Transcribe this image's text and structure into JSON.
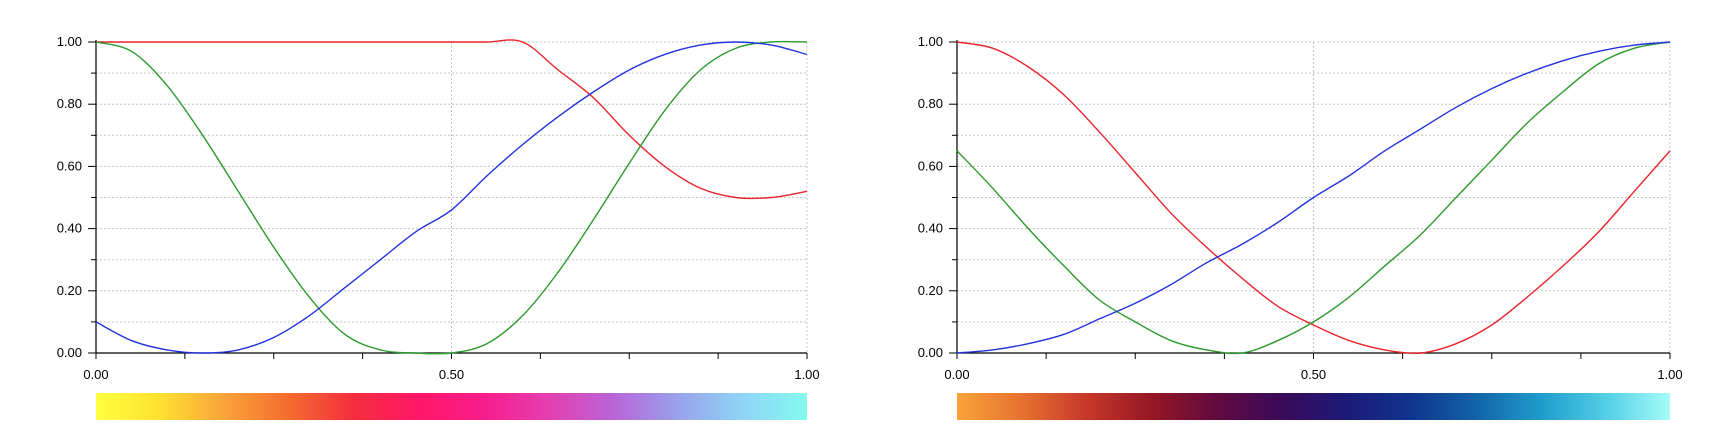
{
  "chart_data": [
    {
      "type": "line",
      "title": "",
      "xlabel": "",
      "ylabel": "",
      "xlim": [
        0,
        1
      ],
      "ylim": [
        0,
        1
      ],
      "x_ticks": [
        0,
        0.5,
        1
      ],
      "x_tick_labels": [
        "0.00",
        "0.50",
        "1.00"
      ],
      "y_ticks": [
        0,
        0.2,
        0.4,
        0.6,
        0.8,
        1
      ],
      "y_tick_labels": [
        "0.00",
        "0.20",
        "0.40",
        "0.60",
        "0.80",
        "1.00"
      ],
      "grid": true,
      "x": [
        0,
        0.05,
        0.1,
        0.15,
        0.2,
        0.25,
        0.3,
        0.35,
        0.4,
        0.45,
        0.5,
        0.55,
        0.6,
        0.65,
        0.7,
        0.75,
        0.8,
        0.85,
        0.9,
        0.95,
        1.0
      ],
      "series": [
        {
          "color": "#e8242b",
          "values": [
            1,
            1,
            1,
            1,
            1,
            1,
            1,
            1,
            1,
            1,
            1,
            1,
            1,
            0.91,
            0.82,
            0.7,
            0.6,
            0.53,
            0.5,
            0.5,
            0.52
          ]
        },
        {
          "color": "#2c9a2c",
          "values": [
            1,
            0.97,
            0.86,
            0.7,
            0.52,
            0.34,
            0.18,
            0.06,
            0.01,
            0.0,
            0.0,
            0.03,
            0.12,
            0.26,
            0.43,
            0.61,
            0.78,
            0.91,
            0.98,
            1.0,
            1.0
          ]
        },
        {
          "color": "#2233dd",
          "values": [
            0.1,
            0.04,
            0.01,
            0.0,
            0.01,
            0.05,
            0.12,
            0.21,
            0.3,
            0.39,
            0.46,
            0.57,
            0.67,
            0.76,
            0.84,
            0.91,
            0.96,
            0.99,
            1.0,
            0.99,
            0.96
          ]
        }
      ],
      "colorbar": [
        "#ffff40",
        "#ffe030",
        "#f9a23a",
        "#f46b2e",
        "#f42d3e",
        "#ff1668",
        "#f81d8c",
        "#e43fb0",
        "#b964d8",
        "#9aa2ec",
        "#8fd4f6",
        "#84faee"
      ]
    },
    {
      "type": "line",
      "title": "",
      "xlabel": "",
      "ylabel": "",
      "xlim": [
        0,
        1
      ],
      "ylim": [
        0,
        1
      ],
      "x_ticks": [
        0,
        0.5,
        1
      ],
      "x_tick_labels": [
        "0.00",
        "0.50",
        "1.00"
      ],
      "y_ticks": [
        0,
        0.2,
        0.4,
        0.6,
        0.8,
        1
      ],
      "y_tick_labels": [
        "0.00",
        "0.20",
        "0.40",
        "0.60",
        "0.80",
        "1.00"
      ],
      "grid": true,
      "x": [
        0,
        0.05,
        0.1,
        0.15,
        0.2,
        0.25,
        0.3,
        0.35,
        0.4,
        0.45,
        0.5,
        0.55,
        0.6,
        0.65,
        0.7,
        0.75,
        0.8,
        0.85,
        0.9,
        0.95,
        1.0
      ],
      "series": [
        {
          "color": "#e8242b",
          "values": [
            1,
            0.98,
            0.92,
            0.83,
            0.71,
            0.58,
            0.45,
            0.34,
            0.24,
            0.15,
            0.09,
            0.04,
            0.01,
            0.0,
            0.03,
            0.09,
            0.18,
            0.28,
            0.39,
            0.52,
            0.65
          ]
        },
        {
          "color": "#2c9a2c",
          "values": [
            0.65,
            0.53,
            0.4,
            0.28,
            0.17,
            0.1,
            0.04,
            0.01,
            0.0,
            0.04,
            0.1,
            0.18,
            0.28,
            0.38,
            0.5,
            0.62,
            0.74,
            0.84,
            0.93,
            0.98,
            1.0
          ]
        },
        {
          "color": "#2233dd",
          "values": [
            0,
            0.01,
            0.03,
            0.06,
            0.11,
            0.16,
            0.22,
            0.29,
            0.35,
            0.42,
            0.5,
            0.57,
            0.65,
            0.72,
            0.79,
            0.85,
            0.9,
            0.94,
            0.97,
            0.99,
            1.0
          ]
        }
      ],
      "colorbar": [
        "#f9a33a",
        "#e6722f",
        "#c8372a",
        "#961724",
        "#620a3f",
        "#3a0a5a",
        "#1c1a78",
        "#10348e",
        "#1263a8",
        "#1f9bcc",
        "#52cee6",
        "#a6fcf8"
      ]
    }
  ]
}
